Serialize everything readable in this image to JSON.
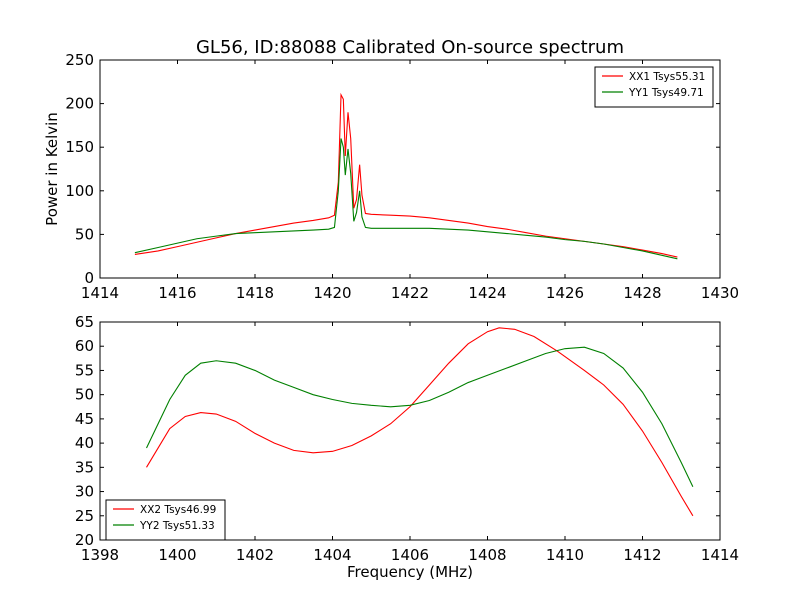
{
  "chart_data": [
    {
      "type": "line",
      "title": "GL56, ID:88088 Calibrated On-source spectrum",
      "xlabel": "",
      "ylabel": "Power in Kelvin",
      "xlim": [
        1414,
        1430
      ],
      "ylim": [
        0,
        250
      ],
      "xticks": [
        1414,
        1416,
        1418,
        1420,
        1422,
        1424,
        1426,
        1428,
        1430
      ],
      "yticks": [
        0,
        50,
        100,
        150,
        200,
        250
      ],
      "legend_position": "top-right",
      "series": [
        {
          "name": "XX1 Tsys55.31",
          "color": "#ff0000",
          "points": [
            [
              1414.9,
              27
            ],
            [
              1415.5,
              31
            ],
            [
              1416.0,
              36
            ],
            [
              1416.5,
              41
            ],
            [
              1417.0,
              46
            ],
            [
              1417.5,
              51
            ],
            [
              1418.0,
              55
            ],
            [
              1418.5,
              59
            ],
            [
              1419.0,
              63
            ],
            [
              1419.5,
              66
            ],
            [
              1419.9,
              69
            ],
            [
              1420.05,
              72
            ],
            [
              1420.15,
              110
            ],
            [
              1420.22,
              210
            ],
            [
              1420.28,
              205
            ],
            [
              1420.33,
              140
            ],
            [
              1420.4,
              190
            ],
            [
              1420.47,
              160
            ],
            [
              1420.55,
              80
            ],
            [
              1420.62,
              90
            ],
            [
              1420.7,
              130
            ],
            [
              1420.76,
              95
            ],
            [
              1420.85,
              74
            ],
            [
              1421.0,
              73
            ],
            [
              1421.5,
              72
            ],
            [
              1422.0,
              71
            ],
            [
              1422.5,
              69
            ],
            [
              1423.0,
              66
            ],
            [
              1423.5,
              63
            ],
            [
              1424.0,
              59
            ],
            [
              1424.5,
              56
            ],
            [
              1425.0,
              52
            ],
            [
              1425.5,
              48
            ],
            [
              1426.0,
              45
            ],
            [
              1426.5,
              42
            ],
            [
              1427.0,
              39
            ],
            [
              1427.5,
              36
            ],
            [
              1428.0,
              32
            ],
            [
              1428.5,
              28
            ],
            [
              1428.9,
              24
            ]
          ]
        },
        {
          "name": "YY1 Tsys49.71",
          "color": "#008000",
          "points": [
            [
              1414.9,
              29
            ],
            [
              1415.5,
              35
            ],
            [
              1416.0,
              40
            ],
            [
              1416.5,
              45
            ],
            [
              1417.0,
              48
            ],
            [
              1417.5,
              51
            ],
            [
              1418.0,
              52
            ],
            [
              1418.5,
              53
            ],
            [
              1419.0,
              54
            ],
            [
              1419.5,
              55
            ],
            [
              1419.9,
              56
            ],
            [
              1420.05,
              58
            ],
            [
              1420.15,
              100
            ],
            [
              1420.22,
              160
            ],
            [
              1420.28,
              150
            ],
            [
              1420.33,
              118
            ],
            [
              1420.4,
              148
            ],
            [
              1420.47,
              120
            ],
            [
              1420.55,
              65
            ],
            [
              1420.62,
              75
            ],
            [
              1420.7,
              100
            ],
            [
              1420.76,
              70
            ],
            [
              1420.85,
              58
            ],
            [
              1421.0,
              57
            ],
            [
              1421.5,
              57
            ],
            [
              1422.0,
              57
            ],
            [
              1422.5,
              57
            ],
            [
              1423.0,
              56
            ],
            [
              1423.5,
              55
            ],
            [
              1424.0,
              53
            ],
            [
              1424.5,
              51
            ],
            [
              1425.0,
              49
            ],
            [
              1425.5,
              47
            ],
            [
              1426.0,
              44
            ],
            [
              1426.5,
              42
            ],
            [
              1427.0,
              39
            ],
            [
              1427.5,
              35
            ],
            [
              1428.0,
              31
            ],
            [
              1428.5,
              26
            ],
            [
              1428.9,
              22
            ]
          ]
        }
      ]
    },
    {
      "type": "line",
      "title": "",
      "xlabel": "Frequency (MHz)",
      "ylabel": "",
      "xlim": [
        1398,
        1414
      ],
      "ylim": [
        20,
        65
      ],
      "xticks": [
        1398,
        1400,
        1402,
        1404,
        1406,
        1408,
        1410,
        1412,
        1414
      ],
      "yticks": [
        20,
        25,
        30,
        35,
        40,
        45,
        50,
        55,
        60,
        65
      ],
      "legend_position": "bottom-left",
      "series": [
        {
          "name": "XX2 Tsys46.99",
          "color": "#ff0000",
          "points": [
            [
              1399.2,
              35
            ],
            [
              1399.5,
              39
            ],
            [
              1399.8,
              43
            ],
            [
              1400.2,
              45.5
            ],
            [
              1400.6,
              46.3
            ],
            [
              1401.0,
              46
            ],
            [
              1401.5,
              44.5
            ],
            [
              1402.0,
              42
            ],
            [
              1402.5,
              40
            ],
            [
              1403.0,
              38.5
            ],
            [
              1403.5,
              38
            ],
            [
              1404.0,
              38.3
            ],
            [
              1404.5,
              39.5
            ],
            [
              1405.0,
              41.5
            ],
            [
              1405.5,
              44
            ],
            [
              1406.0,
              47.5
            ],
            [
              1406.5,
              52
            ],
            [
              1407.0,
              56.5
            ],
            [
              1407.5,
              60.5
            ],
            [
              1408.0,
              63
            ],
            [
              1408.3,
              63.8
            ],
            [
              1408.7,
              63.5
            ],
            [
              1409.2,
              62
            ],
            [
              1409.8,
              59
            ],
            [
              1410.5,
              55
            ],
            [
              1411.0,
              52
            ],
            [
              1411.5,
              48
            ],
            [
              1412.0,
              42.5
            ],
            [
              1412.5,
              36
            ],
            [
              1413.0,
              29
            ],
            [
              1413.3,
              25
            ]
          ]
        },
        {
          "name": "YY2 Tsys51.33",
          "color": "#008000",
          "points": [
            [
              1399.2,
              39
            ],
            [
              1399.5,
              44
            ],
            [
              1399.8,
              49
            ],
            [
              1400.2,
              54
            ],
            [
              1400.6,
              56.5
            ],
            [
              1401.0,
              57
            ],
            [
              1401.5,
              56.5
            ],
            [
              1402.0,
              55
            ],
            [
              1402.5,
              53
            ],
            [
              1403.0,
              51.5
            ],
            [
              1403.5,
              50
            ],
            [
              1404.0,
              49
            ],
            [
              1404.5,
              48.2
            ],
            [
              1405.0,
              47.8
            ],
            [
              1405.5,
              47.5
            ],
            [
              1406.0,
              47.8
            ],
            [
              1406.5,
              48.8
            ],
            [
              1407.0,
              50.5
            ],
            [
              1407.5,
              52.5
            ],
            [
              1408.0,
              54
            ],
            [
              1408.5,
              55.5
            ],
            [
              1409.0,
              57
            ],
            [
              1409.5,
              58.5
            ],
            [
              1410.0,
              59.5
            ],
            [
              1410.5,
              59.8
            ],
            [
              1411.0,
              58.5
            ],
            [
              1411.5,
              55.5
            ],
            [
              1412.0,
              50.5
            ],
            [
              1412.5,
              44
            ],
            [
              1413.0,
              36
            ],
            [
              1413.3,
              31
            ]
          ]
        }
      ]
    }
  ]
}
